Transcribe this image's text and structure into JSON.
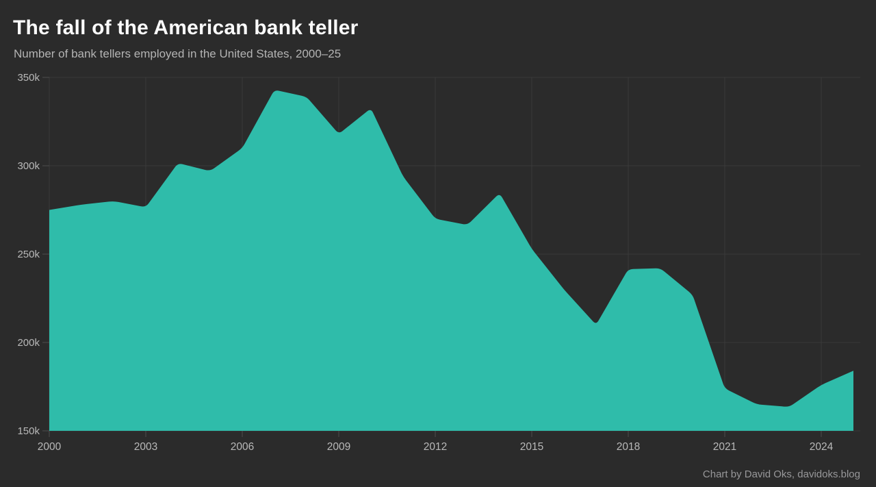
{
  "header": {
    "title": "The fall of the American bank teller",
    "subtitle": "Number of bank tellers employed in the United States, 2000–25"
  },
  "attribution": "Chart by David Oks, davidoks.blog",
  "colors": {
    "background": "#2b2b2b",
    "area_fill": "#2fbcaa",
    "title_text": "#fbfbfb",
    "subtitle_text": "#b4b4b4",
    "axis_text": "#b9b9b9",
    "attribution_text": "#98989a",
    "gridline": "#3a3a3a",
    "tick_mark": "#4c4c4c"
  },
  "chart_data": {
    "type": "area",
    "title": "The fall of the American bank teller",
    "subtitle": "Number of bank tellers employed in the United States, 2000–25",
    "x": [
      2000,
      2001,
      2002,
      2003,
      2004,
      2005,
      2006,
      2007,
      2008,
      2009,
      2010,
      2011,
      2012,
      2013,
      2014,
      2015,
      2016,
      2017,
      2018,
      2019,
      2020,
      2021,
      2022,
      2023,
      2024,
      2025
    ],
    "values_thousands": [
      275,
      278,
      280,
      276.5,
      301.5,
      297,
      310,
      343,
      339,
      318,
      332.5,
      294,
      270,
      266.5,
      284.5,
      253,
      230,
      210,
      241.5,
      242,
      227,
      174,
      165,
      163.5,
      176,
      184
    ],
    "xlabel": "",
    "ylabel": "",
    "xlim": [
      2000,
      2025
    ],
    "ylim_thousands": [
      150,
      350
    ],
    "x_ticks": [
      {
        "value": 2000,
        "label": "2000"
      },
      {
        "value": 2003,
        "label": "2003"
      },
      {
        "value": 2006,
        "label": "2006"
      },
      {
        "value": 2009,
        "label": "2009"
      },
      {
        "value": 2012,
        "label": "2012"
      },
      {
        "value": 2015,
        "label": "2015"
      },
      {
        "value": 2018,
        "label": "2018"
      },
      {
        "value": 2021,
        "label": "2021"
      },
      {
        "value": 2024,
        "label": "2024"
      }
    ],
    "y_ticks": [
      {
        "value": 150,
        "label": "150k"
      },
      {
        "value": 200,
        "label": "200k"
      },
      {
        "value": 250,
        "label": "250k"
      },
      {
        "value": 300,
        "label": "300k"
      },
      {
        "value": 350,
        "label": "350k"
      }
    ],
    "grid": true,
    "legend": null
  }
}
